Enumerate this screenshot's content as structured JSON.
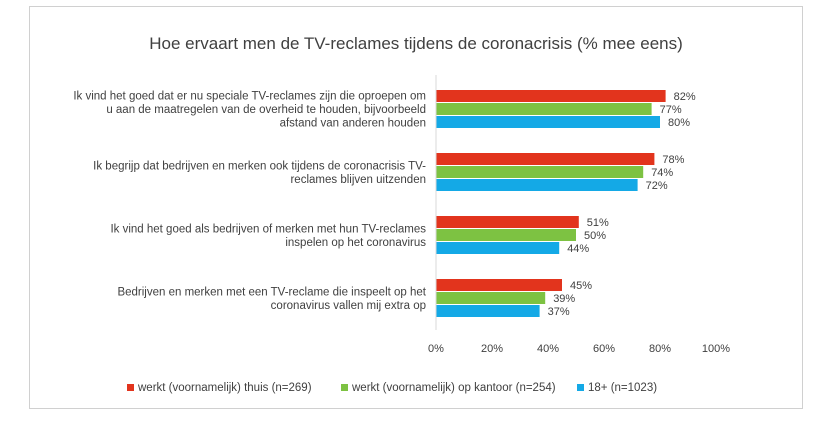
{
  "chart_data": {
    "type": "bar",
    "orientation": "horizontal",
    "title": "Hoe ervaart men de TV-reclames tijdens de coronacrisis (% mee eens)",
    "categories": [
      [
        "Ik vind het goed dat er nu speciale TV-reclames zijn die oproepen om",
        "u aan de maatregelen van de overheid te houden, bijvoorbeeld",
        "afstand van anderen houden"
      ],
      [
        "Ik begrijp dat bedrijven en merken ook tijdens de coronacrisis TV-",
        "reclames blijven uitzenden"
      ],
      [
        "Ik vind het goed als bedrijven of merken met hun TV-reclames",
        "inspelen op het coronavirus"
      ],
      [
        "Bedrijven en merken met een TV-reclame die inspeelt op het",
        "coronavirus vallen mij extra op"
      ]
    ],
    "series": [
      {
        "name": "werkt (voornamelijk) thuis (n=269)",
        "color": "#e2341d",
        "values": [
          82,
          78,
          51,
          45
        ],
        "labels": [
          "82%",
          "78%",
          "51%",
          "45%"
        ]
      },
      {
        "name": "werkt (voornamelijk) op kantoor (n=254)",
        "color": "#7dc242",
        "values": [
          77,
          74,
          50,
          39
        ],
        "labels": [
          "77%",
          "74%",
          "50%",
          "39%"
        ]
      },
      {
        "name": "18+ (n=1023)",
        "color": "#14a9e6",
        "values": [
          80,
          72,
          44,
          37
        ],
        "labels": [
          "80%",
          "72%",
          "44%",
          "37%"
        ]
      }
    ],
    "xlim": [
      0,
      100
    ],
    "xticks": [
      0,
      20,
      40,
      60,
      80,
      100
    ],
    "xtick_labels": [
      "0%",
      "20%",
      "40%",
      "60%",
      "80%",
      "100%"
    ],
    "xlabel": "",
    "ylabel": "",
    "grid": false,
    "legend_position": "bottom"
  }
}
